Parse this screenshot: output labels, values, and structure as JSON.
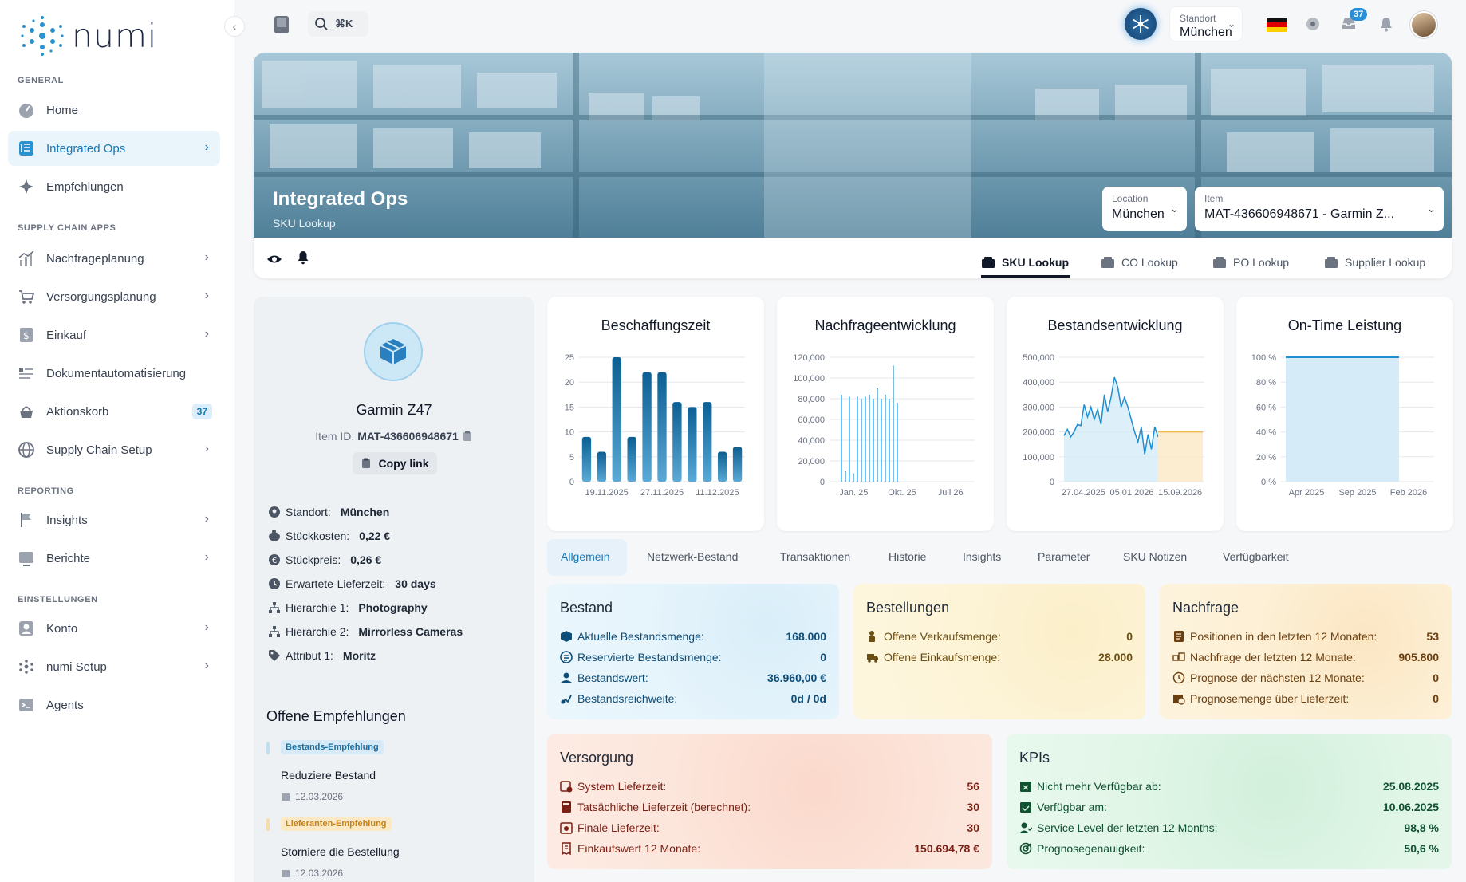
{
  "brand": {
    "name": "numi"
  },
  "sidebar": {
    "sections": {
      "general": "GENERAL",
      "supply": "SUPPLY CHAIN APPS",
      "reporting": "REPORTING",
      "settings": "EINSTELLUNGEN"
    },
    "items": [
      {
        "label": "Home"
      },
      {
        "label": "Integrated Ops"
      },
      {
        "label": "Empfehlungen"
      },
      {
        "label": "Nachfrageplanung"
      },
      {
        "label": "Versorgungsplanung"
      },
      {
        "label": "Einkauf"
      },
      {
        "label": "Dokumentautomatisierung"
      },
      {
        "label": "Aktionskorb",
        "badge": "37"
      },
      {
        "label": "Supply Chain Setup"
      },
      {
        "label": "Insights"
      },
      {
        "label": "Berichte"
      },
      {
        "label": "Konto"
      },
      {
        "label": "numi Setup"
      },
      {
        "label": "Agents"
      }
    ]
  },
  "topbar": {
    "search_shortcut": "⌘K",
    "standort_label": "Standort",
    "standort_value": "München",
    "notif_count": "37"
  },
  "header": {
    "title": "Integrated Ops",
    "subtitle": "SKU Lookup",
    "location_label": "Location",
    "location_value": "München",
    "item_label": "Item",
    "item_value": "MAT-436606948671 - Garmin Z...",
    "tabs": [
      "SKU Lookup",
      "CO Lookup",
      "PO Lookup",
      "Supplier Lookup"
    ]
  },
  "product": {
    "name": "Garmin Z47",
    "id_label": "Item ID:",
    "id_value": "MAT-436606948671",
    "copy_label": "Copy link",
    "attrs": [
      {
        "label": "Standort:",
        "value": "München"
      },
      {
        "label": "Stückkosten:",
        "value": "0,22 €"
      },
      {
        "label": "Stückpreis:",
        "value": "0,26 €"
      },
      {
        "label": "Erwartete-Lieferzeit:",
        "value": "30 days"
      },
      {
        "label": "Hierarchie 1:",
        "value": "Photography"
      },
      {
        "label": "Hierarchie 2:",
        "value": "Mirrorless Cameras"
      },
      {
        "label": "Attribut 1:",
        "value": "Moritz"
      }
    ]
  },
  "recommendations": {
    "title": "Offene Empfehlungen",
    "items": [
      {
        "tag": "Bestands-Empfehlung",
        "text": "Reduziere Bestand",
        "date": "12.03.2026"
      },
      {
        "tag": "Lieferanten-Empfehlung",
        "text": "Storniere die Bestellung",
        "date": "12.03.2026"
      }
    ]
  },
  "chart_data": [
    {
      "type": "bar",
      "title": "Beschaffungszeit",
      "ylim": [
        0,
        25
      ],
      "yticks": [
        "0",
        "5",
        "10",
        "15",
        "20",
        "25"
      ],
      "xticks": [
        "19.11.2025",
        "27.11.2025",
        "11.12.2025"
      ],
      "values": [
        9,
        6,
        25,
        9,
        22,
        22,
        16,
        15,
        16,
        6,
        7
      ],
      "color": "#0b5f92"
    },
    {
      "type": "bar",
      "title": "Nachfrageentwicklung",
      "ylim": [
        0,
        120000
      ],
      "yticks": [
        "0",
        "20,000",
        "40,000",
        "60,000",
        "80,000",
        "100,000",
        "120,000"
      ],
      "xticks": [
        "Jan. 25",
        "Okt. 25",
        "Juli 26"
      ],
      "values": [
        84000,
        10000,
        82000,
        8000,
        82000,
        80000,
        82000,
        84000,
        80000,
        90000,
        80000,
        84000,
        80000,
        112000,
        76000
      ],
      "color": "#2a93cf"
    },
    {
      "type": "area",
      "title": "Bestandsentwicklung",
      "ylim": [
        0,
        500000
      ],
      "yticks": [
        "0",
        "100,000",
        "200,000",
        "300,000",
        "400,000",
        "500,000"
      ],
      "xticks": [
        "27.04.2025",
        "05.01.2026",
        "15.09.2026"
      ],
      "actual": [
        185000,
        210000,
        180000,
        200000,
        230000,
        225000,
        310000,
        260000,
        300000,
        250000,
        290000,
        230000,
        350000,
        280000,
        340000,
        420000,
        380000,
        300000,
        340000,
        300000,
        250000,
        200000,
        160000,
        220000,
        110000,
        190000,
        130000,
        220000,
        180000
      ],
      "forecast": [
        200000,
        200000,
        200000,
        200000,
        200000,
        200000,
        200000,
        200000,
        200000,
        200000,
        200000,
        200000,
        200000
      ],
      "color": "#1f8fd0",
      "forecast_color": "#f2b94b"
    },
    {
      "type": "area",
      "title": "On-Time Leistung",
      "ylim": [
        0,
        100
      ],
      "yticks": [
        "0 %",
        "20 %",
        "40 %",
        "60 %",
        "80 %",
        "100 %"
      ],
      "xticks": [
        "Apr 2025",
        "Sep 2025",
        "Feb 2026"
      ],
      "values": [
        100,
        100
      ],
      "color": "#1f8fd0"
    }
  ],
  "content_tabs": [
    "Allgemein",
    "Netzwerk-Bestand",
    "Transaktionen",
    "Historie",
    "Insights",
    "Parameter",
    "SKU Notizen",
    "Verfügbarkeit"
  ],
  "cards": {
    "bestand": {
      "title": "Bestand",
      "rows": [
        {
          "label": "Aktuelle Bestandsmenge:",
          "value": "168.000"
        },
        {
          "label": "Reservierte Bestandsmenge:",
          "value": "0"
        },
        {
          "label": "Bestandswert:",
          "value": "36.960,00 €"
        },
        {
          "label": "Bestandsreichweite:",
          "value": "0d / 0d"
        }
      ]
    },
    "bestellungen": {
      "title": "Bestellungen",
      "rows": [
        {
          "label": "Offene Verkaufsmenge:",
          "value": "0"
        },
        {
          "label": "Offene Einkaufsmenge:",
          "value": "28.000"
        }
      ]
    },
    "nachfrage": {
      "title": "Nachfrage",
      "rows": [
        {
          "label": "Positionen in den letzten 12 Monaten:",
          "value": "53"
        },
        {
          "label": "Nachfrage der letzten 12 Monate:",
          "value": "905.800"
        },
        {
          "label": "Prognose der nächsten 12 Monate:",
          "value": "0"
        },
        {
          "label": "Prognosemenge über Lieferzeit:",
          "value": "0"
        }
      ]
    },
    "versorgung": {
      "title": "Versorgung",
      "rows": [
        {
          "label": "System Lieferzeit:",
          "value": "56"
        },
        {
          "label": "Tatsächliche Lieferzeit (berechnet):",
          "value": "30"
        },
        {
          "label": "Finale Lieferzeit:",
          "value": "30"
        },
        {
          "label": "Einkaufswert 12 Monate:",
          "value": "150.694,78 €"
        }
      ]
    },
    "kpis": {
      "title": "KPIs",
      "rows": [
        {
          "label": "Nicht mehr Verfügbar ab:",
          "value": "25.08.2025"
        },
        {
          "label": "Verfügbar am:",
          "value": "10.06.2025"
        },
        {
          "label": "Service Level der letzten 12 Months:",
          "value": "98,8 %"
        },
        {
          "label": "Prognosegenauigkeit:",
          "value": "50,6 %"
        }
      ]
    }
  }
}
